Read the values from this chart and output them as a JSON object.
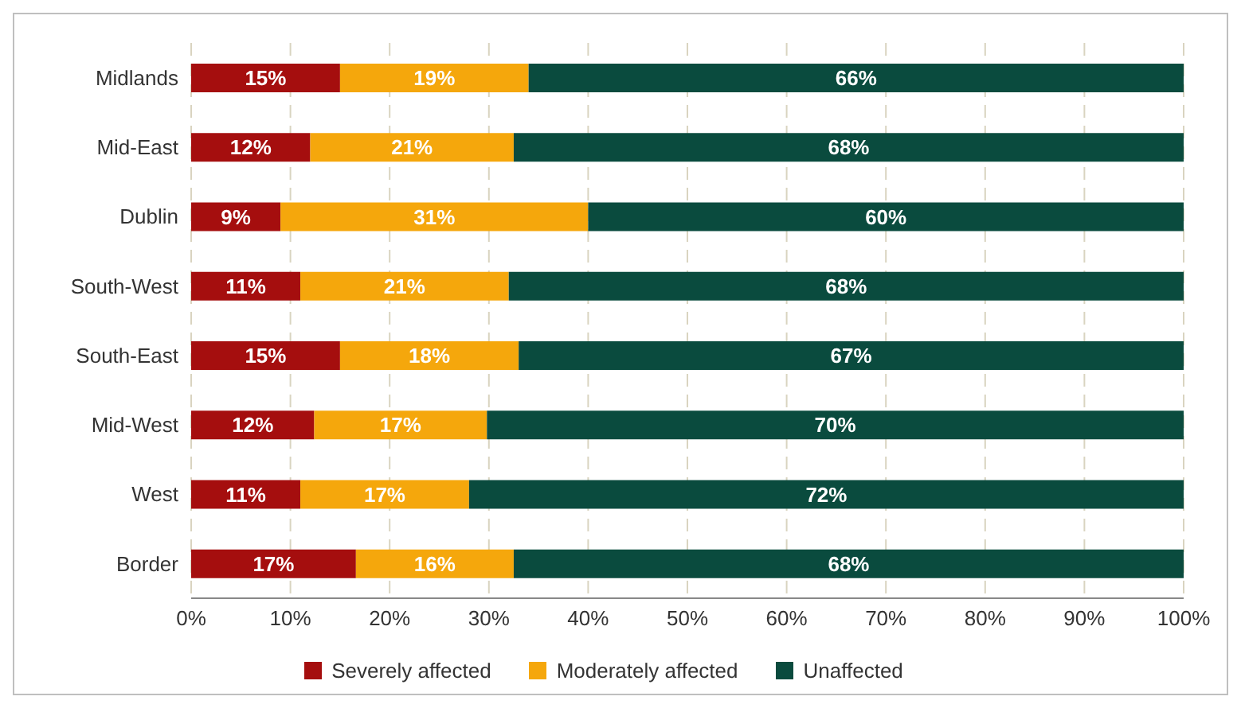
{
  "chart_data": {
    "type": "bar",
    "orientation": "horizontal",
    "stacked": true,
    "categories": [
      "Midlands",
      "Mid-East",
      "Dublin",
      "South-West",
      "South-East",
      "Mid-West",
      "West",
      "Border"
    ],
    "series": [
      {
        "name": "Severely affected",
        "color": "#a50e0e",
        "values": [
          15,
          12,
          9,
          11,
          15,
          12.4,
          11,
          16.6
        ],
        "value_labels": [
          "15%",
          "12%",
          "9%",
          "11%",
          "15%",
          "12%",
          "11%",
          "17%"
        ]
      },
      {
        "name": "Moderately affected",
        "color": "#f5a70c",
        "values": [
          19,
          20.5,
          31,
          21,
          18,
          17.4,
          17,
          15.9
        ],
        "value_labels": [
          "19%",
          "21%",
          "31%",
          "21%",
          "18%",
          "17%",
          "17%",
          "16%"
        ]
      },
      {
        "name": "Unaffected",
        "color": "#0a4b3e",
        "values": [
          66,
          67.5,
          60,
          68,
          67,
          70.2,
          72,
          67.5
        ],
        "value_labels": [
          "66%",
          "68%",
          "60%",
          "68%",
          "67%",
          "70%",
          "72%",
          "68%"
        ]
      }
    ],
    "xlim": [
      0,
      100
    ],
    "xticks": [
      {
        "value": 0,
        "label": "0%"
      },
      {
        "value": 10,
        "label": "10%"
      },
      {
        "value": 20,
        "label": "20%"
      },
      {
        "value": 30,
        "label": "30%"
      },
      {
        "value": 40,
        "label": "40%"
      },
      {
        "value": 50,
        "label": "50%"
      },
      {
        "value": 60,
        "label": "60%"
      },
      {
        "value": 70,
        "label": "70%"
      },
      {
        "value": 80,
        "label": "80%"
      },
      {
        "value": 90,
        "label": "90%"
      },
      {
        "value": 100,
        "label": "100%"
      }
    ],
    "grid": "x",
    "legend": "bottom"
  }
}
